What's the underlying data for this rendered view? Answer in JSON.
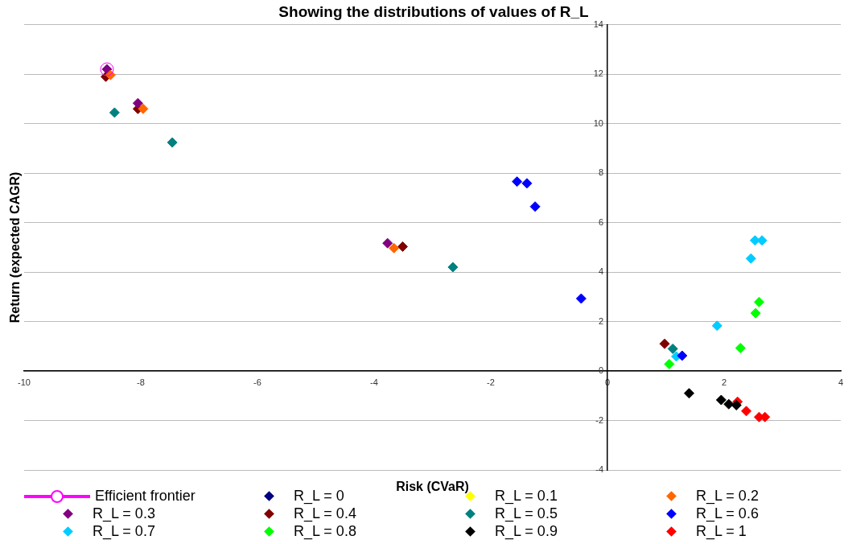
{
  "chart_data": {
    "type": "scatter",
    "title": "Showing the distributions of values of R_L",
    "xlabel": "Risk (CVaR)",
    "ylabel": "Return (expected CAGR)",
    "xlim": [
      -10,
      4
    ],
    "xticks": [
      -10,
      -8,
      -6,
      -4,
      -2,
      0,
      2,
      4
    ],
    "ylim": [
      -4,
      14
    ],
    "yticks": [
      -4,
      -2,
      0,
      2,
      4,
      6,
      8,
      10,
      12,
      14
    ],
    "grid": "y",
    "legend": "bottom",
    "marker": "diamond",
    "series": [
      {
        "name": "Efficient frontier",
        "type": "line",
        "marker": "circle",
        "color": "#ff00ff",
        "x": [
          -8.58
        ],
        "values": [
          12.2
        ]
      },
      {
        "name": "R_L = 0",
        "color": "#000080"
      },
      {
        "name": "R_L = 0.1",
        "color": "#ffff00"
      },
      {
        "name": "R_L = 0.2",
        "color": "#ff6600",
        "x": [
          -8.52,
          -7.96,
          -3.66
        ],
        "values": [
          11.97,
          10.6,
          4.97
        ]
      },
      {
        "name": "R_L = 0.3",
        "color": "#800080",
        "x": [
          -8.58,
          -8.05,
          -3.77
        ],
        "values": [
          12.2,
          10.83,
          5.17
        ]
      },
      {
        "name": "R_L = 0.4",
        "color": "#800000",
        "x": [
          -8.6,
          -8.05,
          -3.51,
          0.98
        ],
        "values": [
          11.9,
          10.6,
          5.03,
          1.1
        ]
      },
      {
        "name": "R_L = 0.5",
        "color": "#008080",
        "x": [
          -8.45,
          -7.46,
          -2.65,
          1.12
        ],
        "values": [
          10.45,
          9.24,
          4.2,
          0.9
        ]
      },
      {
        "name": "R_L = 0.6",
        "color": "#0000ff",
        "x": [
          -1.55,
          -1.38,
          -1.24,
          -0.45,
          1.28
        ],
        "values": [
          7.66,
          7.59,
          6.65,
          2.93,
          0.62
        ]
      },
      {
        "name": "R_L = 0.7",
        "color": "#00ccff",
        "x": [
          2.53,
          2.65,
          2.46,
          1.88,
          1.18
        ],
        "values": [
          5.28,
          5.28,
          4.55,
          1.83,
          0.59
        ]
      },
      {
        "name": "R_L = 0.8",
        "color": "#00ff00",
        "x": [
          2.6,
          2.54,
          2.28,
          1.06
        ],
        "values": [
          2.79,
          2.34,
          0.93,
          0.28
        ]
      },
      {
        "name": "R_L = 0.9",
        "color": "#000000",
        "x": [
          1.4,
          1.95,
          2.08,
          2.21
        ],
        "values": [
          -0.9,
          -1.17,
          -1.34,
          -1.38
        ]
      },
      {
        "name": "R_L = 1",
        "color": "#ff0000",
        "x": [
          2.23,
          2.38,
          2.6,
          2.7
        ],
        "values": [
          -1.24,
          -1.62,
          -1.86,
          -1.86
        ]
      }
    ]
  }
}
